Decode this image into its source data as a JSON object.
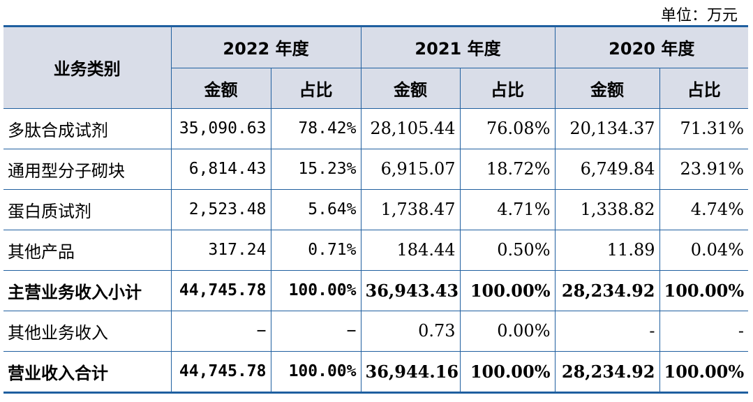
{
  "unit_label": "单位：万元",
  "header": {
    "category": "业务类别",
    "years": [
      "2022 年度",
      "2021 年度",
      "2020 年度"
    ],
    "amount": "金额",
    "ratio": "占比"
  },
  "rows": [
    {
      "category": "多肽合成试剂",
      "y2022_amount": "35,090.63",
      "y2022_ratio": "78.42%",
      "y2021_amount": "28,105.44",
      "y2021_ratio": "76.08%",
      "y2020_amount": "20,134.37",
      "y2020_ratio": "71.31%"
    },
    {
      "category": "通用型分子砌块",
      "y2022_amount": "6,814.43",
      "y2022_ratio": "15.23%",
      "y2021_amount": "6,915.07",
      "y2021_ratio": "18.72%",
      "y2020_amount": "6,749.84",
      "y2020_ratio": "23.91%"
    },
    {
      "category": "蛋白质试剂",
      "y2022_amount": "2,523.48",
      "y2022_ratio": "5.64%",
      "y2021_amount": "1,738.47",
      "y2021_ratio": "4.71%",
      "y2020_amount": "1,338.82",
      "y2020_ratio": "4.74%"
    },
    {
      "category": "其他产品",
      "y2022_amount": "317.24",
      "y2022_ratio": "0.71%",
      "y2021_amount": "184.44",
      "y2021_ratio": "0.50%",
      "y2020_amount": "11.89",
      "y2020_ratio": "0.04%"
    },
    {
      "category": "主营业务收入小计",
      "y2022_amount": "44,745.78",
      "y2022_ratio": "100.00%",
      "y2021_amount": "36,943.43",
      "y2021_ratio": "100.00%",
      "y2020_amount": "28,234.92",
      "y2020_ratio": "100.00%"
    },
    {
      "category": "其他业务收入",
      "y2022_amount": "−",
      "y2022_ratio": "−",
      "y2021_amount": "0.73",
      "y2021_ratio": "0.00%",
      "y2020_amount": "-",
      "y2020_ratio": "-"
    },
    {
      "category": "营业收入合计",
      "y2022_amount": "44,745.78",
      "y2022_ratio": "100.00%",
      "y2021_amount": "36,944.16",
      "y2021_ratio": "100.00%",
      "y2020_amount": "28,234.92",
      "y2020_ratio": "100.00%"
    }
  ]
}
